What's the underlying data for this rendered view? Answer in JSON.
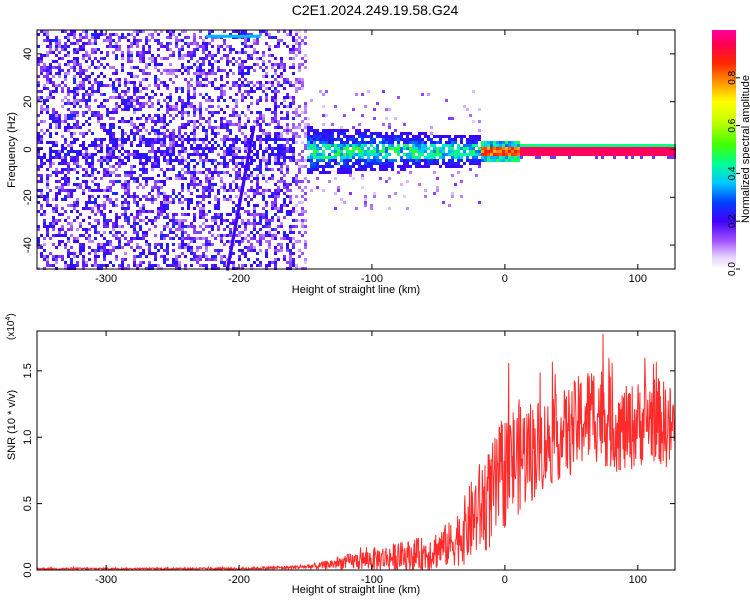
{
  "title": "C2E1.2024.249.19.58.G24",
  "chart_data": [
    {
      "type": "heatmap",
      "xlabel": "Height of straight line (km)",
      "ylabel": "Frequency (Hz)",
      "xlim": [
        -352,
        128
      ],
      "ylim": [
        -50,
        50
      ],
      "xticks": [
        -300,
        -200,
        -100,
        0,
        100
      ],
      "yticks": [
        -40,
        -20,
        0,
        20,
        40
      ],
      "colorbar": {
        "label": "Normalized spectral amplitude",
        "range": [
          0,
          1
        ],
        "ticks": [
          "0.0",
          "0.2",
          "0.4",
          "0.6",
          "0.8"
        ],
        "colormap": [
          "#ffffff",
          "#e0c8ff",
          "#8c3cff",
          "#5a00e6",
          "#0000ff",
          "#00c8ff",
          "#00ff7f",
          "#aaff00",
          "#ffff00",
          "#ff8000",
          "#ff0000",
          "#ff0090"
        ]
      },
      "description_points": [
        {
          "x": -330,
          "y": 0,
          "amp": 0.15
        },
        {
          "x": -200,
          "y": 48,
          "amp": 0.3
        },
        {
          "x": -120,
          "y": 5,
          "amp": 0.3
        },
        {
          "x": -80,
          "y": -3,
          "amp": 0.25
        },
        {
          "x": -40,
          "y": 0,
          "amp": 0.3
        },
        {
          "x": -15,
          "y": 0,
          "amp": 0.8
        },
        {
          "x": 10,
          "y": 0,
          "amp": 1.0
        },
        {
          "x": 100,
          "y": 0,
          "amp": 1.0
        }
      ]
    },
    {
      "type": "line",
      "xlabel": "Height of straight line (km)",
      "ylabel": "SNR (10 * v/v)",
      "yscale_label": "(x10^4)",
      "xlim": [
        -352,
        128
      ],
      "ylim": [
        0,
        1.8
      ],
      "xticks": [
        -300,
        -200,
        -100,
        0,
        100
      ],
      "yticks": [
        "0.0",
        "0.5",
        "1.0",
        "1.5"
      ],
      "series_color": "#ff3030",
      "x": [
        -352,
        -300,
        -250,
        -200,
        -160,
        -140,
        -120,
        -100,
        -80,
        -60,
        -40,
        -30,
        -20,
        -10,
        0,
        10,
        20,
        30,
        40,
        50,
        60,
        70,
        80,
        90,
        100,
        110,
        120,
        128
      ],
      "y": [
        0.01,
        0.01,
        0.01,
        0.01,
        0.02,
        0.03,
        0.06,
        0.08,
        0.1,
        0.12,
        0.2,
        0.3,
        0.45,
        0.55,
        0.75,
        0.85,
        0.9,
        0.95,
        1.0,
        1.05,
        1.15,
        1.2,
        1.1,
        1.05,
        1.1,
        1.15,
        1.1,
        1.05
      ],
      "noise": [
        0.003,
        0.003,
        0.003,
        0.004,
        0.006,
        0.012,
        0.025,
        0.04,
        0.05,
        0.06,
        0.08,
        0.12,
        0.16,
        0.18,
        0.2,
        0.2,
        0.18,
        0.16,
        0.15,
        0.16,
        0.17,
        0.18,
        0.16,
        0.15,
        0.15,
        0.15,
        0.15,
        0.15
      ]
    }
  ]
}
